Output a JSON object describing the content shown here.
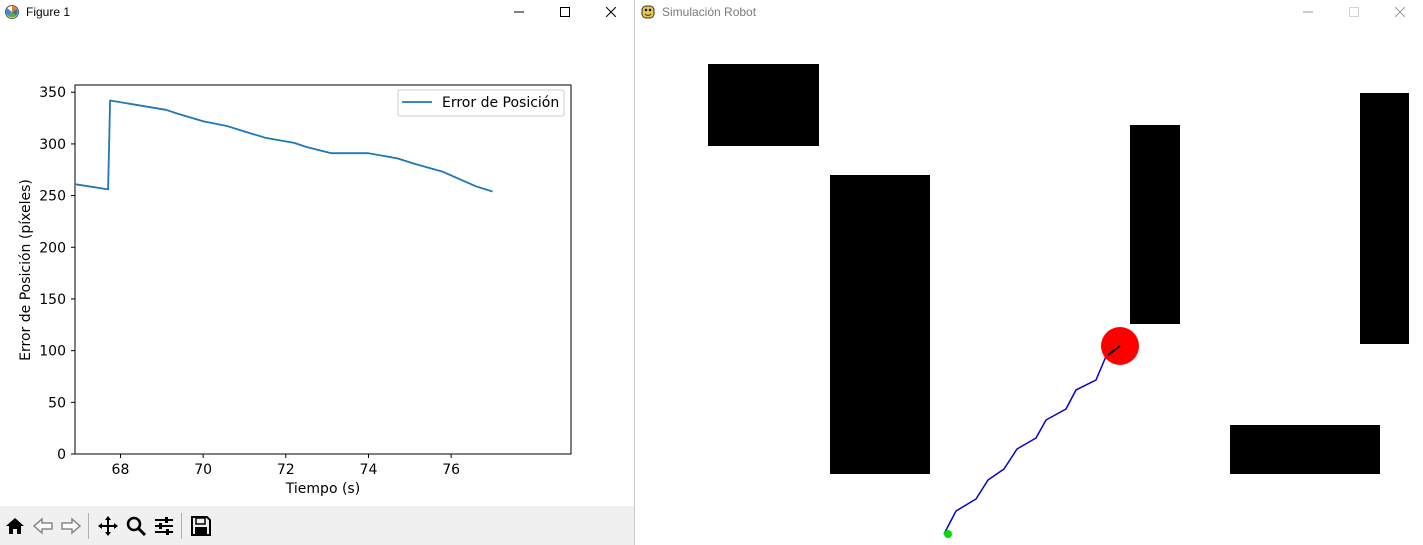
{
  "figure_window": {
    "title": "Figure 1",
    "controls": [
      "minimize",
      "maximize",
      "close"
    ],
    "toolbar": [
      "home-icon",
      "back-icon",
      "forward-icon",
      "pan-icon",
      "zoom-icon",
      "configure-icon",
      "save-icon"
    ]
  },
  "chart_data": {
    "type": "line",
    "title": "",
    "xlabel": "Tiempo (s)",
    "ylabel": "Error de Posición (píxeles)",
    "xlim": [
      66.9,
      78.9
    ],
    "ylim": [
      0,
      357
    ],
    "xticks": [
      68,
      70,
      72,
      74,
      76
    ],
    "yticks": [
      0,
      50,
      100,
      150,
      200,
      250,
      300,
      350
    ],
    "grid": false,
    "legend": "top-right",
    "series": [
      {
        "name": "Error de Posición",
        "color": "#1f77b4",
        "x": [
          66.9,
          67.7,
          67.75,
          68.5,
          69.1,
          69.4,
          70.0,
          70.6,
          71.0,
          71.5,
          72.2,
          72.5,
          73.1,
          74.0,
          74.7,
          75.1,
          75.8,
          76.2,
          76.6,
          77.0
        ],
        "y": [
          261,
          256,
          342,
          337,
          333,
          329,
          322,
          317,
          312,
          306,
          301,
          297,
          291,
          291,
          286,
          281,
          273,
          266,
          259,
          254
        ]
      }
    ]
  },
  "sim_window": {
    "title": "Simulación Robot",
    "controls": [
      "minimize",
      "maximize",
      "close"
    ]
  },
  "colors": {
    "obstacle": "#000000",
    "robot": "#ff0000",
    "path": "#0000cc",
    "start": "#00e000"
  }
}
